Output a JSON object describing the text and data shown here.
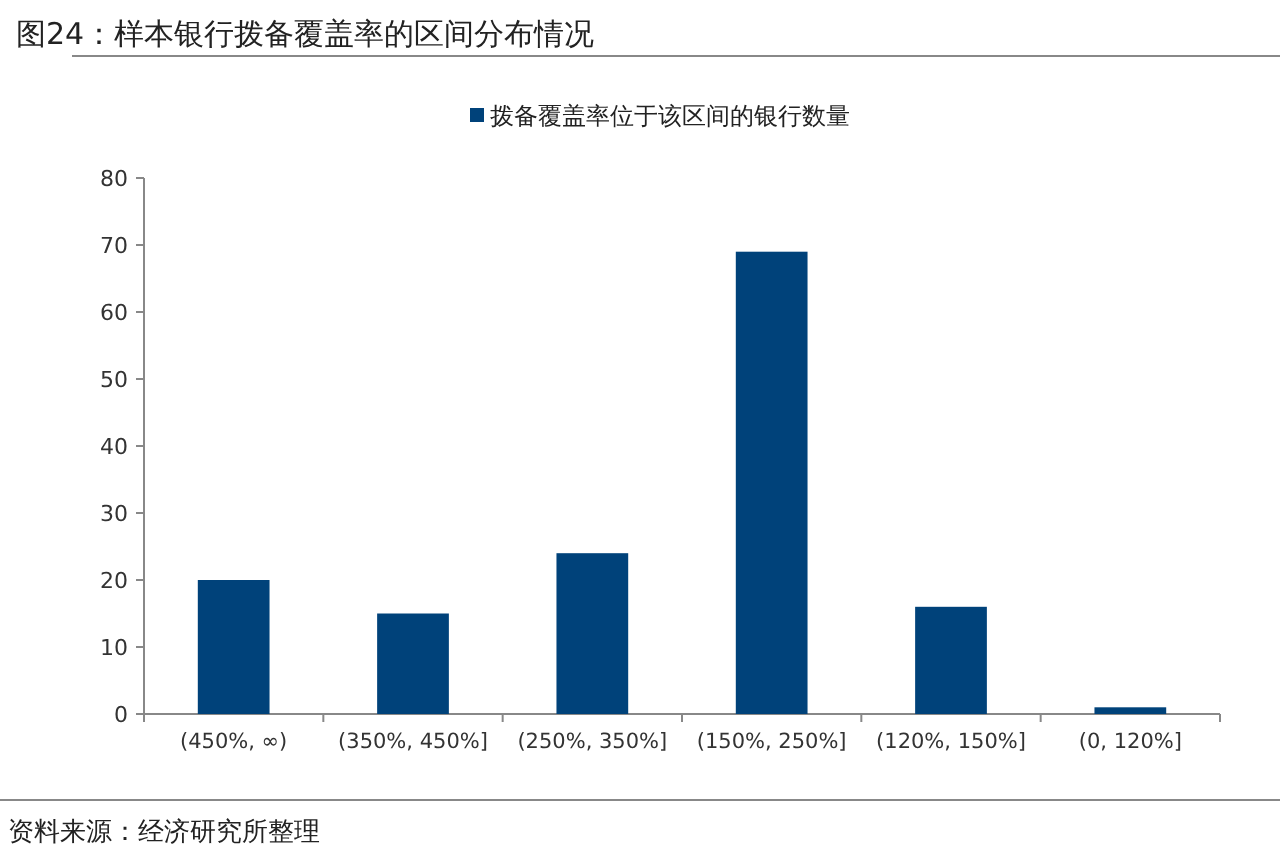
{
  "chart_data": {
    "type": "bar",
    "title": "图24：样本银行拨备覆盖率的区间分布情况",
    "categories": [
      "(450%, ∞)",
      "(350%, 450%]",
      "(250%, 350%]",
      "(150%, 250%]",
      "(120%, 150%]",
      "(0, 120%]"
    ],
    "series": [
      {
        "name": "拨备覆盖率位于该区间的银行数量",
        "color": "#00427a",
        "values": [
          20,
          15,
          24,
          69,
          16,
          1
        ]
      }
    ],
    "ylim": [
      0,
      80
    ],
    "yticks": [
      0,
      10,
      20,
      30,
      40,
      50,
      60,
      70,
      80
    ],
    "legend": "top",
    "annotations": [
      "资料来源：经济研究所整理"
    ]
  }
}
